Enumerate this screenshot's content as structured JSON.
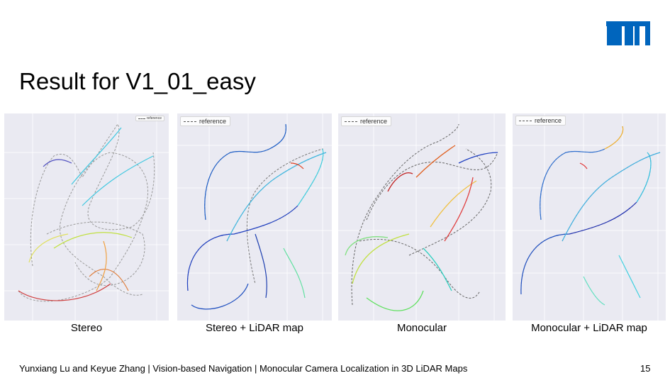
{
  "slide": {
    "title": "Result for V1_01_easy",
    "footer": "Yunxiang Lu and Keyue Zhang | Vision-based Navigation | Monocular Camera Localization in 3D LiDAR Maps",
    "page_number": "15",
    "logo_text": "TUM",
    "brand_color": "#0065bd"
  },
  "panels": [
    {
      "caption": "Stereo",
      "legend": "reference"
    },
    {
      "caption": "Stereo + LiDAR map",
      "legend": "reference"
    },
    {
      "caption": "Monocular",
      "legend": "reference"
    },
    {
      "caption": "Monocular + LiDAR map",
      "legend": "reference"
    }
  ]
}
